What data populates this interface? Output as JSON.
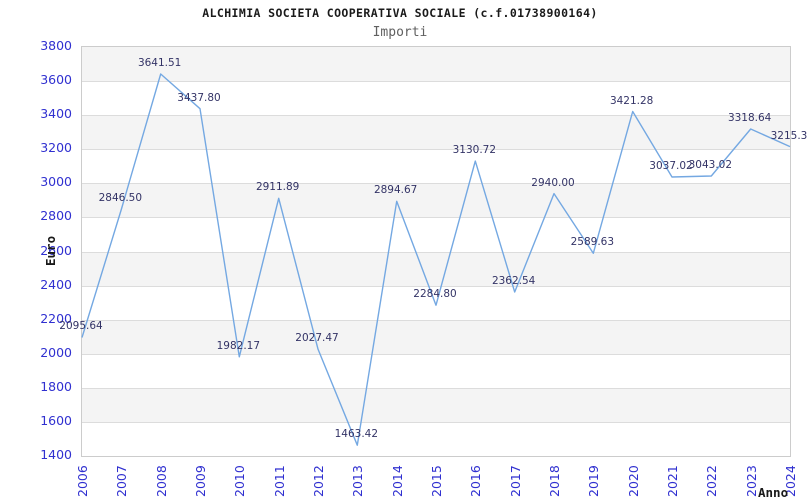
{
  "header": {
    "title": "ALCHIMIA SOCIETA COOPERATIVA SOCIALE (c.f.01738900164)",
    "subtitle": "Importi"
  },
  "chart_data": {
    "type": "line",
    "title": "ALCHIMIA SOCIETA COOPERATIVA SOCIALE (c.f.01738900164)",
    "subtitle": "Importi",
    "xlabel": "Anno",
    "ylabel": "Euro",
    "x": [
      "2006",
      "2007",
      "2008",
      "2009",
      "2010",
      "2011",
      "2012",
      "2013",
      "2014",
      "2015",
      "2016",
      "2017",
      "2018",
      "2019",
      "2020",
      "2021",
      "2022",
      "2023",
      "2024"
    ],
    "values": [
      2095.64,
      2846.5,
      3641.51,
      3437.8,
      1982.17,
      2911.89,
      2027.47,
      1463.42,
      2894.67,
      2284.8,
      3130.72,
      2362.54,
      2940.0,
      2589.63,
      3421.28,
      3037.02,
      3043.02,
      3318.64,
      3215.3
    ],
    "point_labels": [
      "2095.64",
      "2846.50",
      "3641.51",
      "3437.80",
      "1982.17",
      "2911.89",
      "2027.47",
      "1463.42",
      "2894.67",
      "2284.80",
      "3130.72",
      "2362.54",
      "2940.00",
      "2589.63",
      "3421.28",
      "3037.02",
      "3043.02",
      "3318.64",
      "3215.3"
    ],
    "yticks": [
      3800,
      3600,
      3400,
      3200,
      3000,
      2800,
      2600,
      2400,
      2200,
      2000,
      1800,
      1600,
      1400
    ],
    "ylim": [
      1400,
      3800
    ],
    "grid": "horizontal-bands-alternating",
    "legend": "none"
  },
  "colors": {
    "line": "#74a8e2",
    "axis_tick": "#3030d0",
    "data_label": "#333366",
    "band": "#f4f4f4",
    "grid": "#dcdcdc",
    "border": "#cccccc",
    "title": "#1a1a1a",
    "subtitle": "#606060"
  }
}
